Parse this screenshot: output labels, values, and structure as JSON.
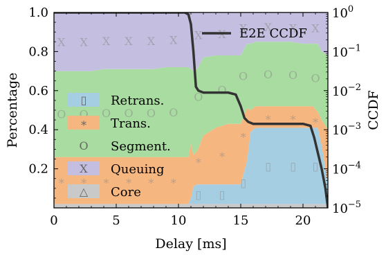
{
  "chart_data": {
    "type": "area",
    "title": "",
    "xlabel": "Delay [ms]",
    "ylabel": "Percentage",
    "ylabel_right": "CCDF",
    "xlim": [
      0,
      22
    ],
    "ylim": [
      0,
      1.0
    ],
    "ylim_right_log10": [
      -5,
      0
    ],
    "x_ticks": [
      "0",
      "5",
      "10",
      "15",
      "20"
    ],
    "y_ticks": [
      "0.2",
      "0.4",
      "0.6",
      "0.8",
      "1.0"
    ],
    "y_right_ticks": [
      {
        "base": "10",
        "exp": "0"
      },
      {
        "base": "10",
        "exp": "−1"
      },
      {
        "base": "10",
        "exp": "−2"
      },
      {
        "base": "10",
        "exp": "−3"
      },
      {
        "base": "10",
        "exp": "−4"
      },
      {
        "base": "10",
        "exp": "−5"
      }
    ],
    "legend_left": {
      "placement": "left",
      "entries": [
        {
          "name": "Retrans.",
          "color": "#a6cee3",
          "marker": "▯"
        },
        {
          "name": "Trans.",
          "color": "#f6b67f",
          "marker": "∗"
        },
        {
          "name": "Segment.",
          "color": "#a9dca0",
          "marker": "O"
        },
        {
          "name": "Queuing",
          "color": "#c4bfe0",
          "marker": "X"
        },
        {
          "name": "Core",
          "color": "#c9c9c9",
          "marker": "△"
        }
      ]
    },
    "legend_right": {
      "placement": "top-right",
      "entries": [
        {
          "name": "E2E CCDF",
          "color": "#333333"
        }
      ]
    },
    "x": [
      0,
      1,
      2,
      3,
      4,
      5,
      6,
      7,
      8,
      9,
      10,
      10.8,
      11.0,
      11.2,
      11.5,
      12,
      13,
      14,
      15,
      15.5,
      15.8,
      16.2,
      17,
      18,
      19,
      20,
      20.8,
      21.2,
      21.5,
      22
    ],
    "series": [
      {
        "name": "Core",
        "color": "#c9c9c9",
        "values": [
          0.02,
          0.02,
          0.02,
          0.02,
          0.02,
          0.02,
          0.02,
          0.02,
          0.02,
          0.02,
          0.02,
          0.02,
          0.02,
          0.02,
          0.02,
          0.02,
          0.02,
          0.02,
          0.02,
          0.02,
          0.02,
          0.02,
          0.02,
          0.02,
          0.02,
          0.02,
          0.02,
          0.02,
          0.02,
          0.02
        ]
      },
      {
        "name": "Retrans.",
        "color": "#a6cee3",
        "values": [
          0,
          0,
          0,
          0,
          0,
          0,
          0,
          0,
          0,
          0,
          0,
          0,
          0.03,
          0.09,
          0.1,
          0.1,
          0.1,
          0.1,
          0.1,
          0.22,
          0.37,
          0.39,
          0.39,
          0.39,
          0.39,
          0.39,
          0.39,
          0.39,
          0.3,
          0.1
        ]
      },
      {
        "name": "Trans.",
        "color": "#f6b67f",
        "values": [
          0.24,
          0.24,
          0.24,
          0.24,
          0.24,
          0.24,
          0.24,
          0.24,
          0.24,
          0.24,
          0.24,
          0.24,
          0.28,
          0.16,
          0.17,
          0.25,
          0.29,
          0.31,
          0.31,
          0.27,
          0.11,
          0.11,
          0.11,
          0.11,
          0.11,
          0.11,
          0.11,
          0.08,
          0.13,
          0.28
        ]
      },
      {
        "name": "Segment.",
        "color": "#a9dca0",
        "values": [
          0.44,
          0.44,
          0.44,
          0.44,
          0.45,
          0.45,
          0.45,
          0.45,
          0.45,
          0.46,
          0.46,
          0.46,
          0.38,
          0.43,
          0.42,
          0.4,
          0.37,
          0.35,
          0.35,
          0.33,
          0.34,
          0.33,
          0.33,
          0.33,
          0.33,
          0.32,
          0.32,
          0.35,
          0.35,
          0.38
        ]
      },
      {
        "name": "Queuing",
        "color": "#c4bfe0",
        "values": [
          0.3,
          0.3,
          0.3,
          0.3,
          0.29,
          0.29,
          0.29,
          0.29,
          0.29,
          0.28,
          0.28,
          0.28,
          0.29,
          0.3,
          0.29,
          0.23,
          0.22,
          0.22,
          0.22,
          0.16,
          0.16,
          0.15,
          0.15,
          0.15,
          0.15,
          0.16,
          0.16,
          0.16,
          0.2,
          0.22
        ]
      }
    ],
    "ccdf": {
      "name": "E2E CCDF",
      "x": [
        0,
        10.5,
        10.8,
        11.0,
        11.2,
        11.4,
        11.6,
        12,
        13,
        14,
        14.6,
        15.0,
        15.3,
        15.6,
        16,
        17,
        18,
        19,
        20,
        20.6,
        20.9,
        21.2,
        21.5,
        21.8,
        22
      ],
      "log10_y": [
        0,
        0,
        -0.05,
        -0.3,
        -1.0,
        -1.9,
        -2.0,
        -2.05,
        -2.05,
        -2.05,
        -2.1,
        -2.4,
        -2.7,
        -2.8,
        -2.85,
        -2.85,
        -2.85,
        -2.85,
        -2.85,
        -2.9,
        -3.2,
        -3.6,
        -4.0,
        -4.5,
        -5.0
      ]
    },
    "grid": false
  }
}
